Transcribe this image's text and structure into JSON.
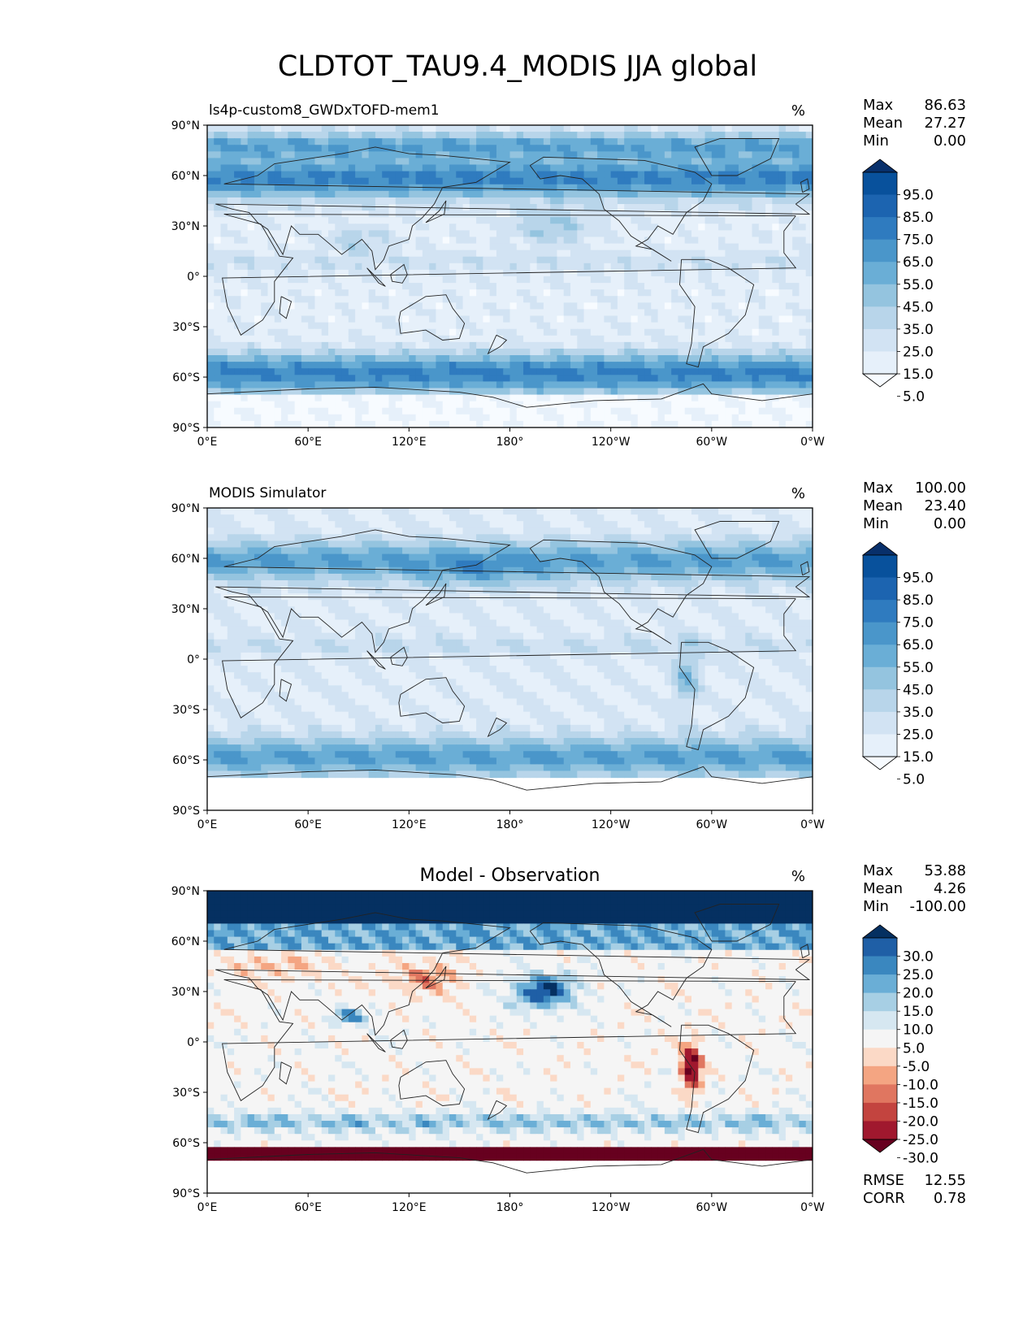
{
  "title": "CLDTOT_TAU9.4_MODIS JJA global",
  "lon_ticks": [
    "0°E",
    "60°E",
    "120°E",
    "180°",
    "120°W",
    "60°W",
    "0°W"
  ],
  "lat_ticks": [
    "90°N",
    "60°N",
    "30°N",
    "0°",
    "30°S",
    "60°S",
    "90°S"
  ],
  "panels": [
    {
      "id": "model",
      "subtitle_left": "ls4p-custom8_GWDxTOFD-mem1",
      "subtitle_center": "",
      "units": "%",
      "stats": [
        {
          "label": "Max",
          "value": "86.63"
        },
        {
          "label": "Mean",
          "value": "27.27"
        },
        {
          "label": "Min",
          "value": "0.00"
        }
      ],
      "extra_stats": [],
      "colorbar": {
        "labels": [
          "95.0",
          "85.0",
          "75.0",
          "65.0",
          "55.0",
          "45.0",
          "35.0",
          "25.0",
          "15.0",
          "5.0"
        ],
        "colors": [
          "#08306b",
          "#08519c",
          "#1c64b0",
          "#2f7bbf",
          "#4a96ca",
          "#6aaed6",
          "#94c4df",
          "#b8d5ea",
          "#d2e3f3",
          "#e6f0fa",
          "#f7fbff"
        ]
      }
    },
    {
      "id": "obs",
      "subtitle_left": "MODIS Simulator",
      "subtitle_center": "",
      "units": "%",
      "stats": [
        {
          "label": "Max",
          "value": "100.00"
        },
        {
          "label": "Mean",
          "value": "23.40"
        },
        {
          "label": "Min",
          "value": "0.00"
        }
      ],
      "extra_stats": [],
      "colorbar": {
        "labels": [
          "95.0",
          "85.0",
          "75.0",
          "65.0",
          "55.0",
          "45.0",
          "35.0",
          "25.0",
          "15.0",
          "5.0"
        ],
        "colors": [
          "#08306b",
          "#08519c",
          "#1c64b0",
          "#2f7bbf",
          "#4a96ca",
          "#6aaed6",
          "#94c4df",
          "#b8d5ea",
          "#d2e3f3",
          "#e6f0fa",
          "#f7fbff"
        ]
      }
    },
    {
      "id": "diff",
      "subtitle_left": "",
      "subtitle_center": "Model - Observation",
      "units": "%",
      "stats": [
        {
          "label": "Max",
          "value": "53.88"
        },
        {
          "label": "Mean",
          "value": "4.26"
        },
        {
          "label": "Min",
          "value": "-100.00"
        }
      ],
      "extra_stats": [
        {
          "label": "RMSE",
          "value": "12.55"
        },
        {
          "label": "CORR",
          "value": "0.78"
        }
      ],
      "colorbar": {
        "labels": [
          "30.0",
          "25.0",
          "20.0",
          "15.0",
          "10.0",
          "5.0",
          "-5.0",
          "-10.0",
          "-15.0",
          "-20.0",
          "-25.0",
          "-30.0"
        ],
        "colors": [
          "#053061",
          "#1f5fa6",
          "#3a87bf",
          "#6aaed6",
          "#a7cfe4",
          "#d6e7f1",
          "#f5f5f5",
          "#fbd9c6",
          "#f4a582",
          "#e07660",
          "#c3443f",
          "#a0182e",
          "#67001f"
        ]
      }
    }
  ],
  "chart_data": [
    {
      "type": "heatmap",
      "title": "ls4p-custom8_GWDxTOFD-mem1",
      "units": "%",
      "x_range_deg_east": [
        0,
        360
      ],
      "y_range_deg_north": [
        -90,
        90
      ],
      "color_levels": [
        0,
        5,
        15,
        25,
        35,
        45,
        55,
        65,
        75,
        85,
        95,
        100
      ],
      "stats": {
        "max": 86.63,
        "mean": 27.27,
        "min": 0.0
      }
    },
    {
      "type": "heatmap",
      "title": "MODIS Simulator",
      "units": "%",
      "x_range_deg_east": [
        0,
        360
      ],
      "y_range_deg_north": [
        -90,
        90
      ],
      "color_levels": [
        0,
        5,
        15,
        25,
        35,
        45,
        55,
        65,
        75,
        85,
        95,
        100
      ],
      "stats": {
        "max": 100.0,
        "mean": 23.4,
        "min": 0.0
      }
    },
    {
      "type": "heatmap",
      "title": "Model - Observation",
      "units": "%",
      "x_range_deg_east": [
        0,
        360
      ],
      "y_range_deg_north": [
        -90,
        90
      ],
      "color_levels": [
        -30,
        -25,
        -20,
        -15,
        -10,
        -5,
        5,
        10,
        15,
        20,
        25,
        30
      ],
      "stats": {
        "max": 53.88,
        "mean": 4.26,
        "min": -100.0,
        "rmse": 12.55,
        "corr": 0.78
      }
    }
  ]
}
